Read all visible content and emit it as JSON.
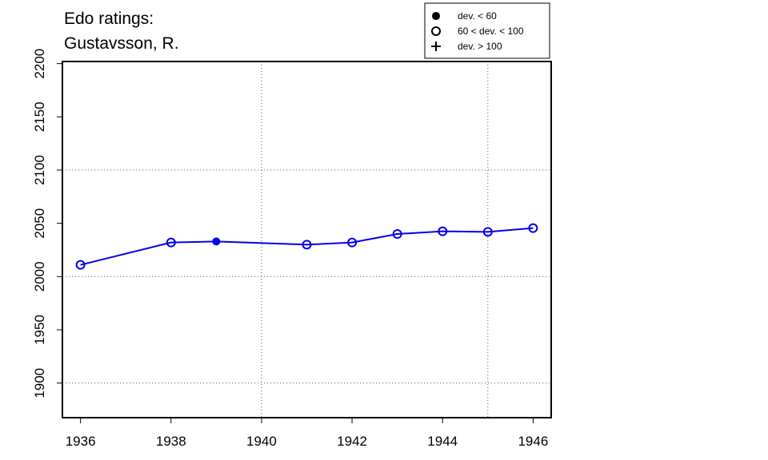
{
  "chart_data": {
    "type": "line",
    "title": [
      "Edo ratings:",
      "Gustavsson, R."
    ],
    "x": [
      1936,
      1938,
      1939,
      1941,
      1942,
      1943,
      1944,
      1945,
      1946
    ],
    "series": [
      {
        "name": "Gustavsson, R.",
        "color": "#0000ee",
        "values": [
          2011,
          2032,
          2033,
          2030,
          2032,
          2040,
          2042.5,
          2042,
          2045.5
        ],
        "markers": [
          "open",
          "open",
          "filled",
          "open",
          "open",
          "open",
          "open",
          "open",
          "open"
        ]
      }
    ],
    "xlim": [
      1935.6,
      1946.4
    ],
    "xticks": [
      1936,
      1938,
      1940,
      1942,
      1944,
      1946
    ],
    "ylim": [
      1867.5,
      2202
    ],
    "yticks": [
      1900,
      1950,
      2000,
      2050,
      2100,
      2150,
      2200
    ],
    "grid_x": [
      1940,
      1945
    ],
    "grid_y": [
      1900,
      2000,
      2100
    ],
    "legend": {
      "position": "top-right",
      "entries": [
        {
          "marker": "filled",
          "label": "dev. < 60"
        },
        {
          "marker": "open",
          "label": "60 < dev. < 100"
        },
        {
          "marker": "plus",
          "label": "dev. > 100"
        }
      ]
    }
  }
}
